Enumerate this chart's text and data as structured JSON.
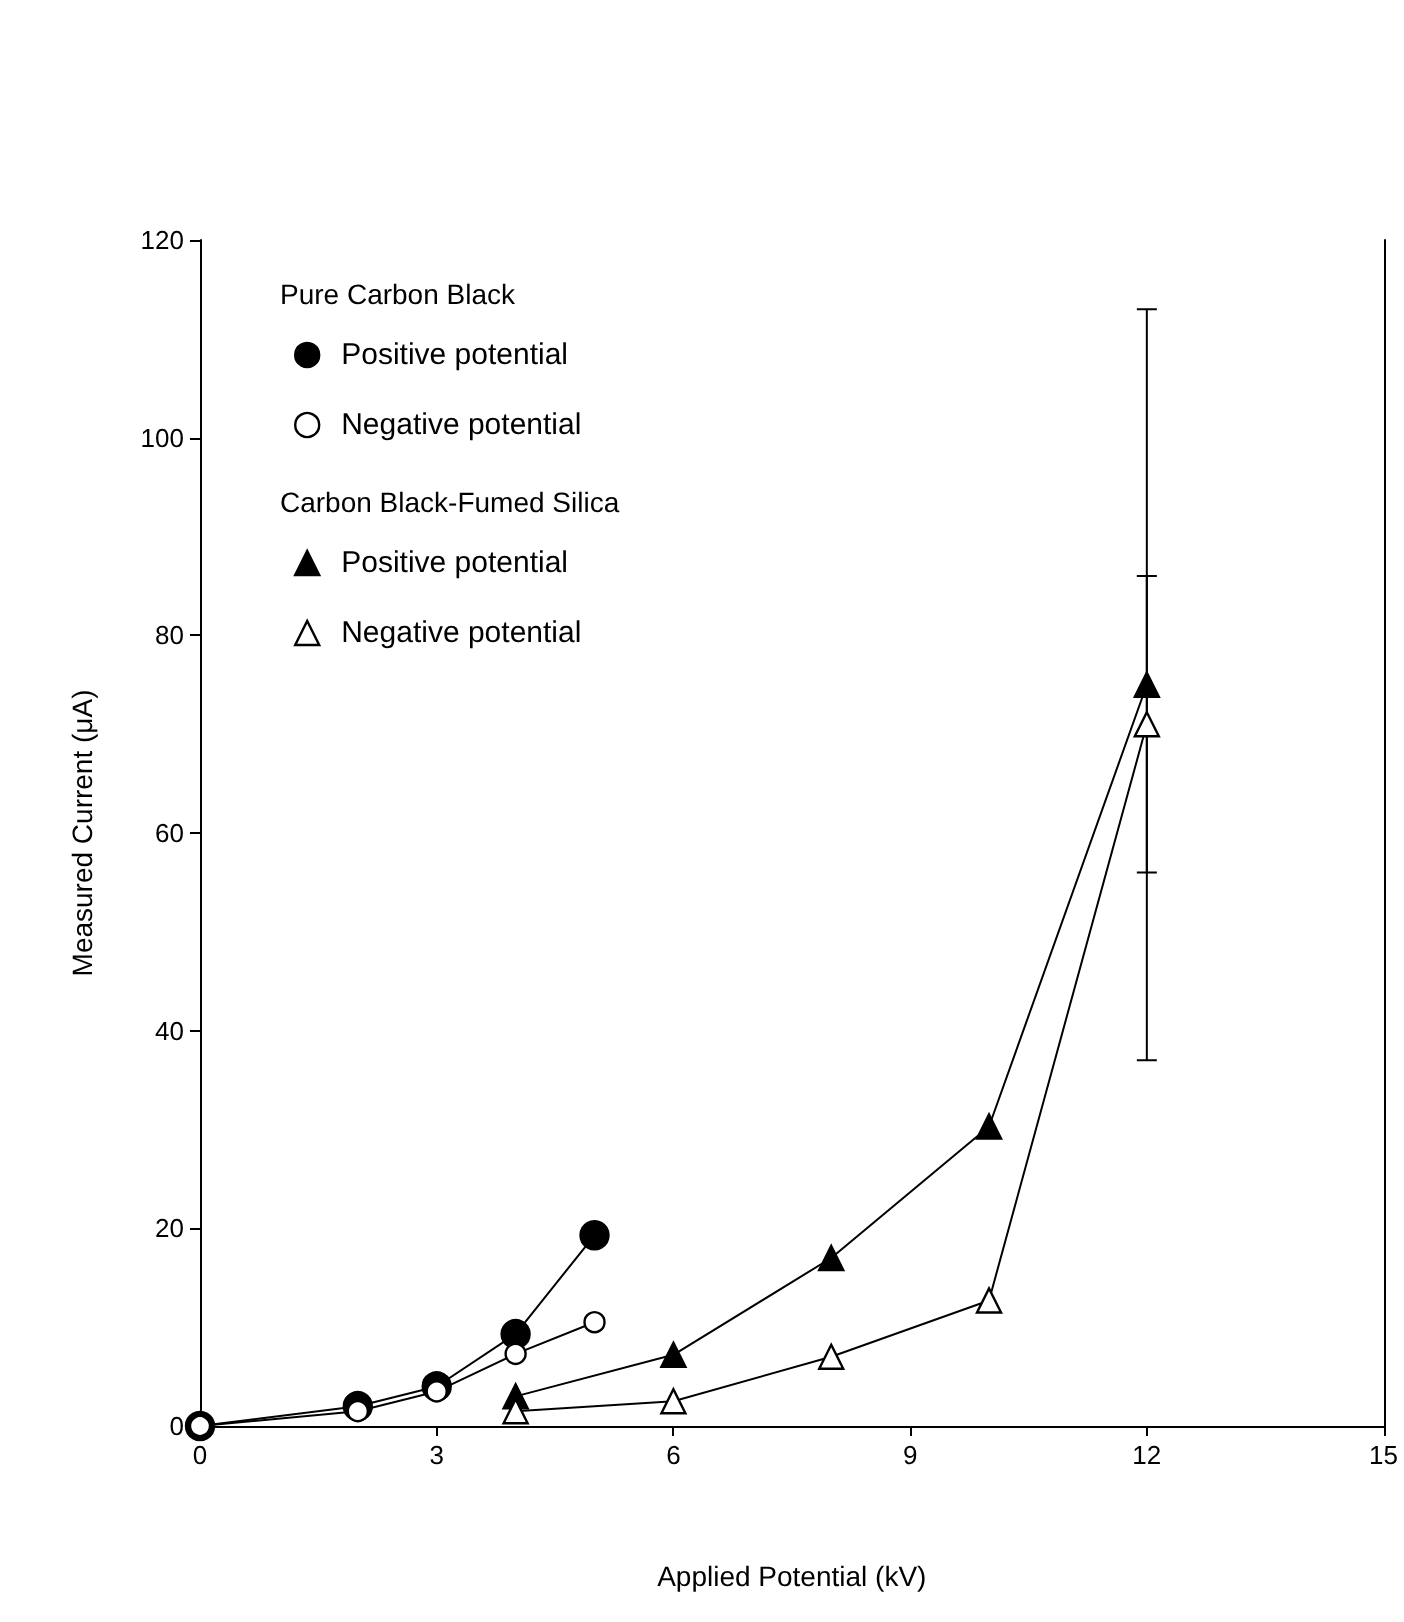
{
  "chart_data": {
    "type": "line",
    "xlabel": "Applied Potential (kV)",
    "ylabel": "Measured Current (μA)",
    "xlim": [
      0,
      15
    ],
    "xticks": [
      0,
      3,
      6,
      9,
      12,
      15
    ],
    "ylim": [
      0,
      120
    ],
    "yticks": [
      0,
      20,
      40,
      60,
      80,
      100,
      120
    ],
    "legend": "top left",
    "annotations": [
      "Pure Carbon Black",
      "Carbon Black-Fumed Silica"
    ],
    "series": [
      {
        "name": "Positive potential",
        "color": "#000000",
        "marker": "circle",
        "x": [
          0,
          2,
          3,
          4,
          5
        ],
        "values": [
          0,
          2,
          4,
          9.3,
          19.3
        ]
      },
      {
        "name": "Negative potential",
        "color": "#000000",
        "marker": "circle",
        "x": [
          0,
          2,
          3,
          4,
          5
        ],
        "values": [
          0,
          1.5,
          3.5,
          7.3,
          10.5
        ]
      },
      {
        "name": "Positive potential",
        "color": "#000000",
        "marker": "triangle",
        "x": [
          4,
          6,
          8,
          10,
          12
        ],
        "values": [
          3,
          7.2,
          17,
          30.3,
          75
        ],
        "errors": [
          null,
          null,
          null,
          null,
          [
            37,
            113
          ]
        ]
      },
      {
        "name": "Negative potential",
        "color": "#000000",
        "marker": "triangle",
        "x": [
          4,
          6,
          8,
          10,
          12
        ],
        "values": [
          1.5,
          2.5,
          7,
          12.7,
          71
        ],
        "errors": [
          null,
          null,
          null,
          null,
          [
            56,
            86
          ]
        ]
      }
    ]
  }
}
